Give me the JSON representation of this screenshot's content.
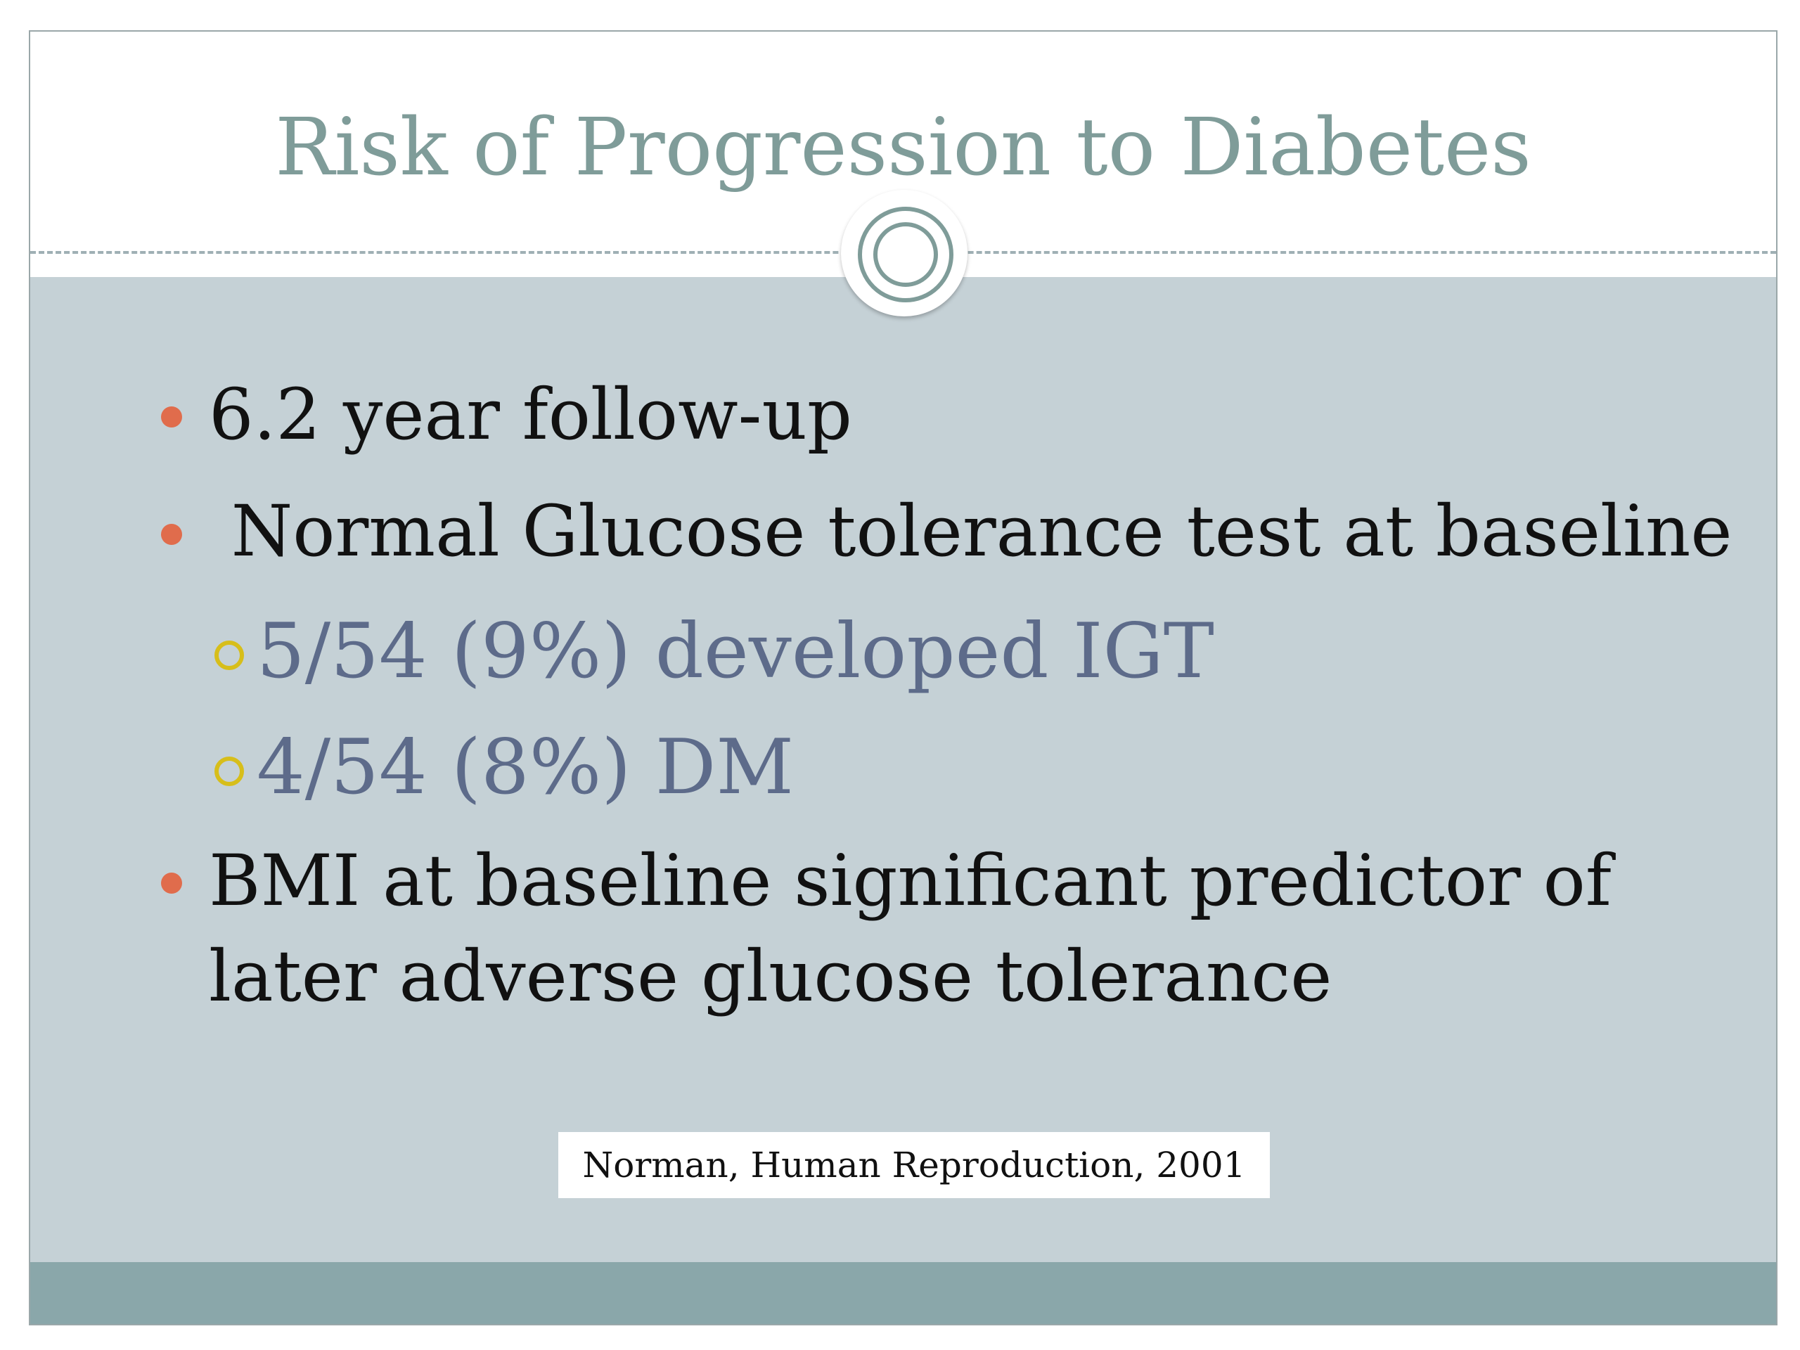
{
  "slide": {
    "title": "Risk of Progression to Diabetes",
    "bullets": [
      {
        "text": "6.2 year follow-up"
      },
      {
        "text": " Normal Glucose tolerance test at baseline"
      },
      {
        "text": "5/54 (9%) developed IGT"
      },
      {
        "text": "4/54 (8%) DM"
      },
      {
        "text": "BMI at baseline significant predictor of"
      },
      {
        "text": "later adverse glucose tolerance"
      }
    ],
    "citation": "Norman, Human Reproduction, 2001"
  },
  "colors": {
    "title": "#7f9c99",
    "body_background": "#c5d1d6",
    "footer_band": "#8aa7aa",
    "bullet_dot": "#e06c4c",
    "sub_bullet_ring": "#d7be1a",
    "sub_bullet_text": "#5d6b8a",
    "main_text": "#111111"
  },
  "icons": {
    "bullet": "filled-circle-bullet-icon",
    "sub_bullet": "hollow-circle-bullet-icon",
    "ornament": "double-ring-ornament-icon"
  }
}
